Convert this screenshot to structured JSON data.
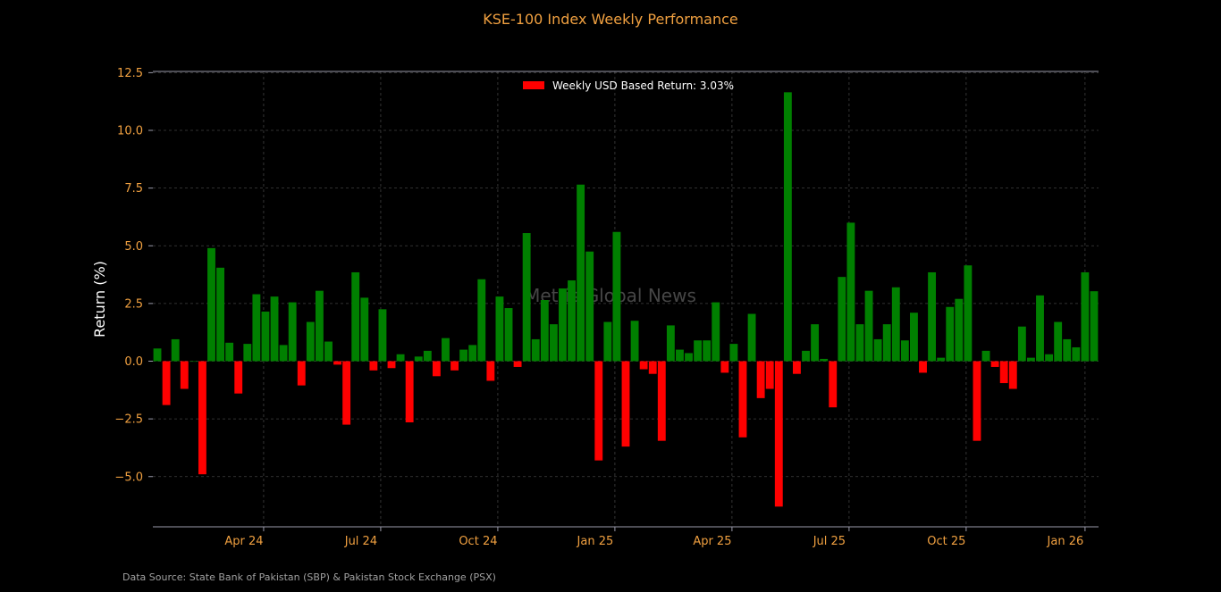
{
  "chart_data": {
    "type": "bar",
    "title": "KSE-100 Index Weekly Performance",
    "ylabel": "Return (%)",
    "xlabel": "",
    "ylim": [
      -7.2,
      12.5
    ],
    "yticks": [
      -5.0,
      -2.5,
      0.0,
      2.5,
      5.0,
      7.5,
      10.0,
      12.5
    ],
    "ytick_labels": [
      "−5.0",
      "−2.5",
      "0.0",
      "2.5",
      "5.0",
      "7.5",
      "10.0",
      "12.5"
    ],
    "xticks": [
      {
        "label": "Apr 24",
        "bar_index": 11.8
      },
      {
        "label": "Jul 24",
        "bar_index": 24.8
      },
      {
        "label": "Oct 24",
        "bar_index": 37.8
      },
      {
        "label": "Jan 25",
        "bar_index": 50.8
      },
      {
        "label": "Apr 25",
        "bar_index": 63.8
      },
      {
        "label": "Jul 25",
        "bar_index": 76.8
      },
      {
        "label": "Oct 25",
        "bar_index": 89.8
      },
      {
        "label": "Jan 26",
        "bar_index": 103.0
      }
    ],
    "grid": true,
    "legend": {
      "placement": "top-center",
      "label": "Weekly USD Based Return: 3.03%",
      "color": "#ff0000"
    },
    "positive_color": "#008000",
    "negative_color": "#ff0000",
    "values": [
      0.55,
      -1.9,
      0.95,
      -1.2,
      0.0,
      -4.9,
      4.9,
      4.05,
      0.8,
      -1.4,
      0.75,
      2.9,
      2.15,
      2.8,
      0.7,
      2.55,
      -1.05,
      1.7,
      3.05,
      0.85,
      -0.15,
      -2.75,
      3.85,
      2.75,
      -0.4,
      2.25,
      -0.3,
      0.3,
      -2.65,
      0.2,
      0.45,
      -0.65,
      1.0,
      -0.4,
      0.5,
      0.7,
      3.55,
      -0.85,
      2.8,
      2.3,
      -0.25,
      5.55,
      0.95,
      2.65,
      1.6,
      3.15,
      3.5,
      7.65,
      4.75,
      -4.3,
      1.7,
      5.6,
      -3.7,
      1.75,
      -0.35,
      -0.55,
      -3.45,
      1.55,
      0.5,
      0.35,
      0.9,
      0.9,
      2.55,
      -0.5,
      0.75,
      -3.3,
      2.05,
      -1.6,
      -1.2,
      -6.3,
      11.65,
      -0.55,
      0.45,
      1.6,
      0.1,
      -2.0,
      3.65,
      6.0,
      1.6,
      3.05,
      0.95,
      1.6,
      3.2,
      0.9,
      2.1,
      -0.5,
      3.85,
      0.15,
      2.35,
      2.7,
      4.15,
      -3.45,
      0.45,
      -0.25,
      -0.95,
      -1.2,
      1.5,
      0.15,
      2.85,
      0.3,
      1.7,
      0.95,
      0.6,
      3.85,
      3.03
    ]
  },
  "watermark": "Mettis Global News",
  "source_note": "Data Source: State Bank of Pakistan (SBP) & Pakistan Stock Exchange (PSX)"
}
